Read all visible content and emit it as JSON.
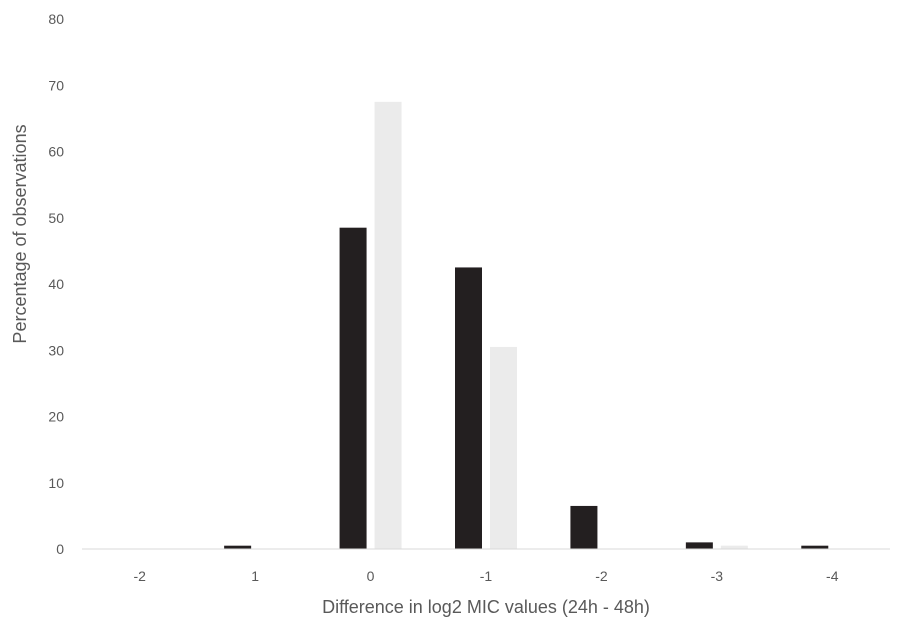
{
  "chart_data": {
    "type": "bar",
    "title": "",
    "xlabel": "Difference in log2 MIC values (24h - 48h)",
    "ylabel": "Percentage of observations",
    "categories": [
      "-2",
      "1",
      "0",
      "-1",
      "-2",
      "-3",
      "-4"
    ],
    "series": [
      {
        "color": "#231f20",
        "values": [
          0,
          0.5,
          48.5,
          42.5,
          6.5,
          1.0,
          0.5
        ]
      },
      {
        "color": "#ebebeb",
        "values": [
          0,
          0,
          67.5,
          30.5,
          0,
          0.5,
          0
        ]
      }
    ],
    "ylim": [
      0,
      80
    ],
    "yticks": [
      0,
      10,
      20,
      30,
      40,
      50,
      60,
      70,
      80
    ],
    "grid": false,
    "legend": "none"
  }
}
